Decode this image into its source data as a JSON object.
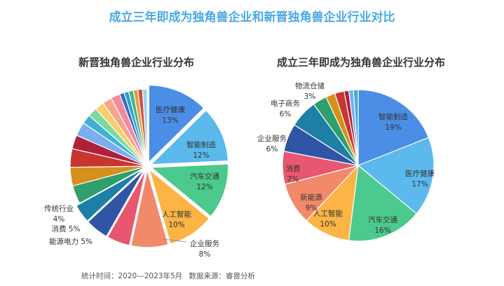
{
  "title": "成立三年即成为独角兽企业和新晋独角兽企业行业对比",
  "footnote": {
    "period": "统计时间：2020—2023年5月",
    "source": "数据来源：睿兽分析"
  },
  "chart_data": [
    {
      "type": "pie",
      "title": "新晋独角兽企业行业分布",
      "unit": "%",
      "start": "12 o'clock",
      "direction": "clockwise",
      "slices": [
        {
          "label": "医疗健康",
          "value": 13,
          "color": "#4b8ee6"
        },
        {
          "label": "智能制造",
          "value": 12,
          "color": "#5bb9ec"
        },
        {
          "label": "汽车交通",
          "value": 12,
          "color": "#4cc98c"
        },
        {
          "label": "人工智能",
          "value": 10,
          "color": "#fbb445"
        },
        {
          "label": "企业服务",
          "value": 8,
          "color": "#f2896b"
        },
        {
          "label": "能源电力",
          "value": 5,
          "color": "#e8566f"
        },
        {
          "label": "消费",
          "value": 5,
          "color": "#2f55a4"
        },
        {
          "label": "传统行业",
          "value": 4,
          "color": "#1e7fa6"
        },
        {
          "label": "",
          "value": 4,
          "color": "#2f9f6b"
        },
        {
          "label": "",
          "value": 4,
          "color": "#d68f1a"
        },
        {
          "label": "",
          "value": 4,
          "color": "#c9362f"
        },
        {
          "label": "",
          "value": 3,
          "color": "#b01f3b"
        },
        {
          "label": "",
          "value": 3,
          "color": "#7aaef0"
        },
        {
          "label": "",
          "value": 2,
          "color": "#3fb1d6"
        },
        {
          "label": "",
          "value": 2,
          "color": "#7ed89c"
        },
        {
          "label": "",
          "value": 2,
          "color": "#f7cf6a"
        },
        {
          "label": "",
          "value": 2,
          "color": "#f6a58a"
        },
        {
          "label": "",
          "value": 2,
          "color": "#f08aa0"
        },
        {
          "label": "",
          "value": 1,
          "color": "#3969c2"
        },
        {
          "label": "",
          "value": 1,
          "color": "#2aa1c9"
        },
        {
          "label": "",
          "value": 1,
          "color": "#43b48a"
        },
        {
          "label": "",
          "value": 1,
          "color": "#e3a23a"
        },
        {
          "label": "",
          "value": 1,
          "color": "#d24b44"
        },
        {
          "label": "",
          "value": 1,
          "color": "#9fcff3"
        }
      ]
    },
    {
      "type": "pie",
      "title": "成立三年即成为独角兽企业行业分布",
      "unit": "%",
      "start": "12 o'clock",
      "direction": "clockwise",
      "slices": [
        {
          "label": "智能制造",
          "value": 19,
          "color": "#4b8ee6"
        },
        {
          "label": "医疗健康",
          "value": 17,
          "color": "#5bb9ec"
        },
        {
          "label": "汽车交通",
          "value": 16,
          "color": "#4cc98c"
        },
        {
          "label": "人工智能",
          "value": 10,
          "color": "#fbb445"
        },
        {
          "label": "新能源",
          "value": 9,
          "color": "#f2896b"
        },
        {
          "label": "消费",
          "value": 7,
          "color": "#e8566f"
        },
        {
          "label": "企业服务",
          "value": 6,
          "color": "#2f55a4"
        },
        {
          "label": "电子商务",
          "value": 6,
          "color": "#1e7fa6"
        },
        {
          "label": "物流仓储",
          "value": 3,
          "color": "#2f9f6b"
        },
        {
          "label": "",
          "value": 2,
          "color": "#d68f1a"
        },
        {
          "label": "",
          "value": 2,
          "color": "#c9362f"
        },
        {
          "label": "",
          "value": 1,
          "color": "#b01f3b"
        },
        {
          "label": "",
          "value": 1,
          "color": "#7aaef0"
        },
        {
          "label": "",
          "value": 1,
          "color": "#3fb1d6"
        }
      ]
    }
  ]
}
